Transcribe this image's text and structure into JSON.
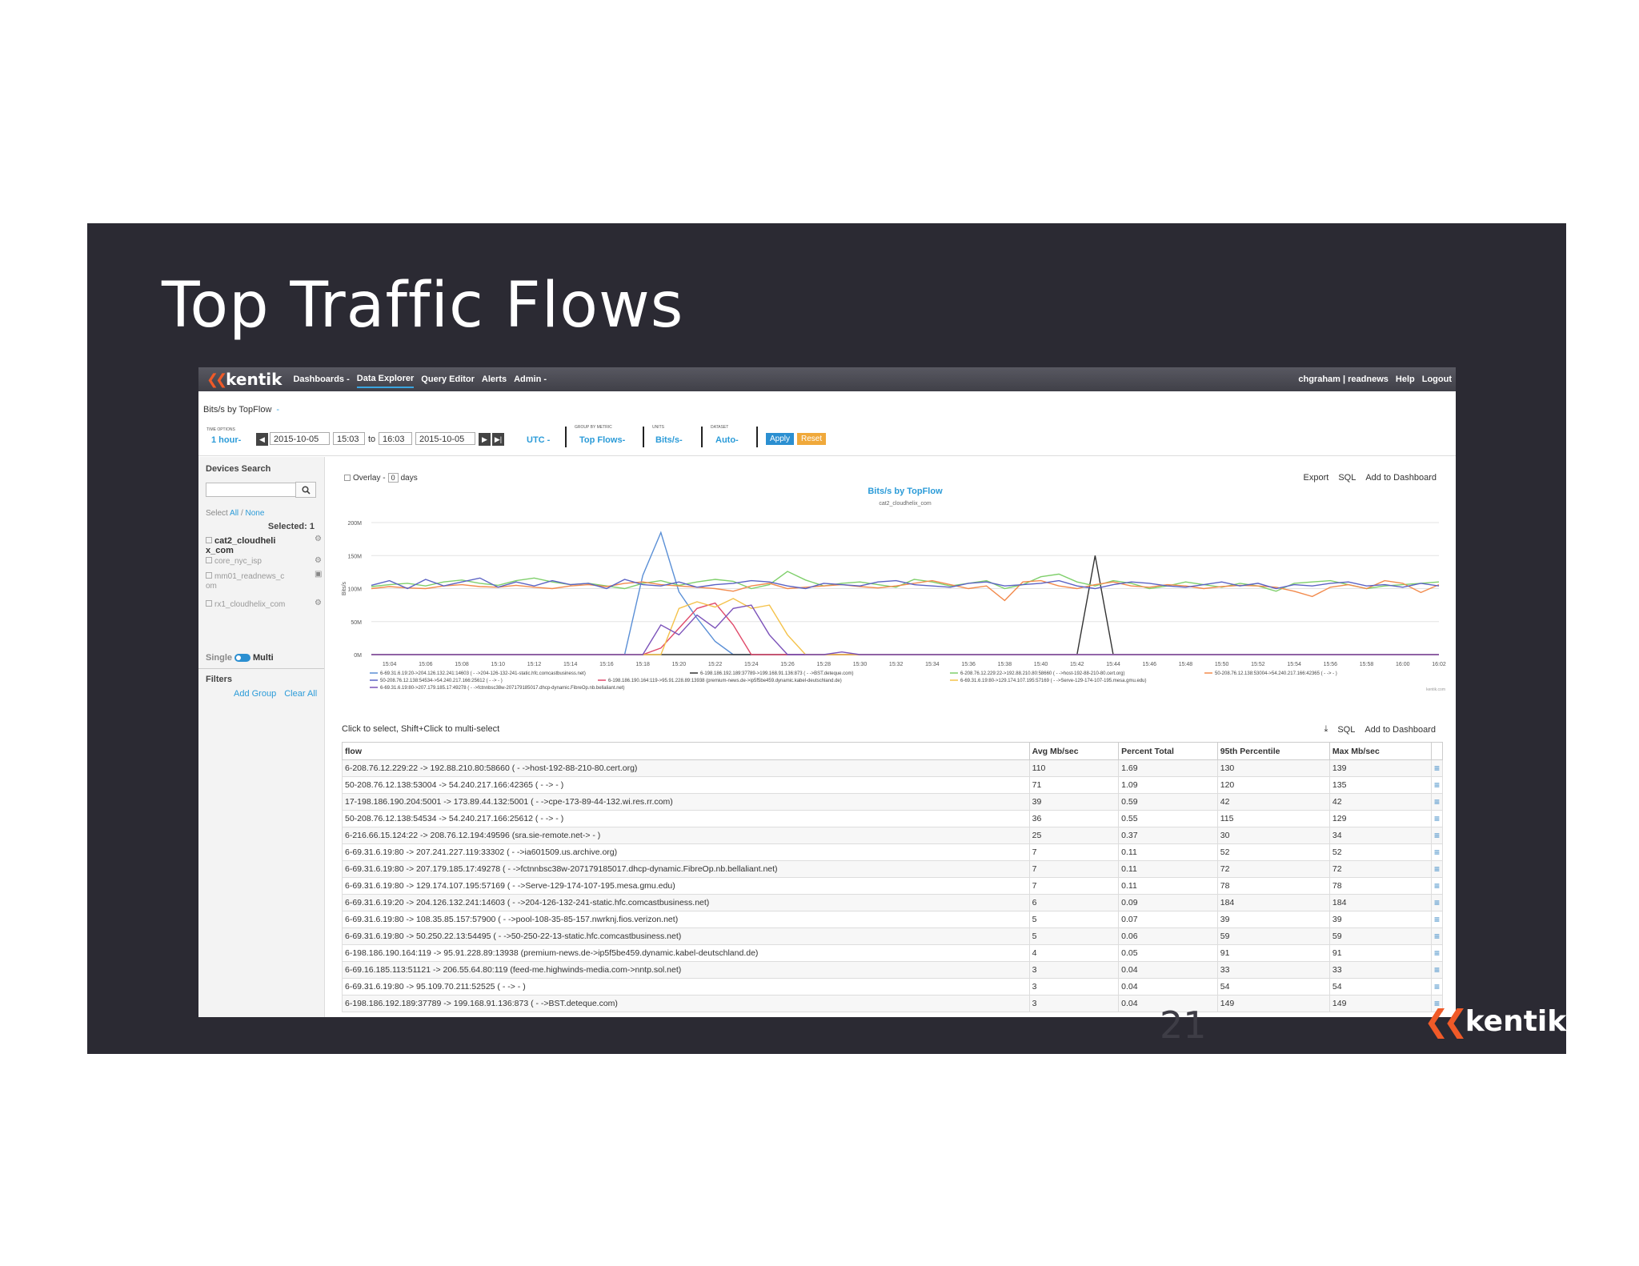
{
  "slide": {
    "title": "Top Traffic Flows",
    "number": "21",
    "logo": "kentik"
  },
  "topbar": {
    "brand": "kentik",
    "nav": [
      "Dashboards -",
      "Data Explorer",
      "Query Editor",
      "Alerts",
      "Admin -"
    ],
    "user": "chgraham | readnews",
    "help": "Help",
    "logout": "Logout"
  },
  "query": {
    "title": "Bits/s by TopFlow",
    "caret": "-",
    "time_options_label": "TIME OPTIONS",
    "range": "1 hour-",
    "start_date": "2015-10-05",
    "start_time": "15:03",
    "to": "to",
    "end_time": "16:03",
    "end_date": "2015-10-05",
    "timezone": "UTC -",
    "group_label": "GROUP BY METRIC",
    "group": "Top Flows-",
    "units_label": "UNITS",
    "units": "Bits/s-",
    "dataset_label": "DATASET",
    "dataset": "Auto-",
    "apply": "Apply",
    "reset": "Reset"
  },
  "sidebar": {
    "devices_heading": "Devices Search",
    "select_label": "Select",
    "select_all": "All",
    "select_slash": "/",
    "select_none": "None",
    "selected": "Selected: 1",
    "devices": [
      {
        "name": "cat2_cloudheli x_com",
        "checked": true
      },
      {
        "name": "core_nyc_isp",
        "checked": false
      },
      {
        "name": "mm01_readnews_c om",
        "checked": false
      },
      {
        "name": "rx1_cloudhelix_com",
        "checked": false
      }
    ],
    "single": "Single",
    "multi": "Multi",
    "filters_heading": "Filters",
    "add_group": "Add Group",
    "clear_all": "Clear All"
  },
  "chart_toolbar": {
    "overlay": "Overlay -",
    "overlay_value": "0",
    "days": "days",
    "export": "Export",
    "sql": "SQL",
    "add_to_dashboard": "Add to Dashboard"
  },
  "chart_data": {
    "type": "line",
    "title": "Bits/s by TopFlow",
    "subtitle": "cat2_cloudhelix_com",
    "ylabel": "Bits/s",
    "xlabel": "",
    "ylim": [
      0,
      200
    ],
    "y_ticks": [
      "0M",
      "50M",
      "100M",
      "150M",
      "200M"
    ],
    "x_ticks": [
      "15:04",
      "15:06",
      "15:08",
      "15:10",
      "15:12",
      "15:14",
      "15:16",
      "15:18",
      "15:20",
      "15:22",
      "15:24",
      "15:26",
      "15:28",
      "15:30",
      "15:32",
      "15:34",
      "15:36",
      "15:38",
      "15:40",
      "15:42",
      "15:44",
      "15:46",
      "15:48",
      "15:50",
      "15:52",
      "15:54",
      "15:56",
      "15:58",
      "16:00",
      "16:02"
    ],
    "x_start_min": 3,
    "x_end_min": 62,
    "grid": true,
    "legend_position": "bottom",
    "watermark": "kentik.com",
    "series": [
      {
        "name": "6-69.31.6.19:20->204.126.132.241:14603 ( - ->204-126-132-241-static.hfc.comcastbusiness.net)",
        "color": "#5a8fd6",
        "x": [
          3,
          4,
          5,
          6,
          7,
          8,
          9,
          10,
          11,
          12,
          13,
          14,
          15,
          16,
          17,
          18,
          19,
          20,
          21,
          22,
          23,
          62
        ],
        "y": [
          0,
          0,
          0,
          0,
          0,
          0,
          0,
          0,
          0,
          0,
          0,
          0,
          0,
          0,
          0,
          120,
          185,
          95,
          55,
          20,
          0,
          0
        ]
      },
      {
        "name": "6-198.186.192.189:37789->199.168.91.136:873 ( - ->BST.deteque.com)",
        "color": "#333333",
        "x": [
          3,
          40,
          41,
          42,
          43,
          44,
          62
        ],
        "y": [
          0,
          0,
          0,
          0,
          150,
          0,
          0
        ]
      },
      {
        "name": "6-208.76.12.229:22->192.88.210.80:58660 ( - ->host-192-88-210-80.cert.org)",
        "color": "#7fcf6b",
        "x": [
          3,
          4,
          5,
          6,
          7,
          8,
          9,
          10,
          11,
          12,
          13,
          14,
          15,
          16,
          17,
          18,
          19,
          20,
          21,
          22,
          23,
          24,
          25,
          26,
          27,
          28,
          29,
          30,
          31,
          32,
          33,
          34,
          35,
          36,
          37,
          38,
          39,
          40,
          41,
          42,
          43,
          44,
          45,
          46,
          47,
          48,
          49,
          50,
          51,
          52,
          53,
          54,
          55,
          56,
          57,
          58,
          59,
          60,
          61,
          62
        ],
        "y": [
          103,
          106,
          108,
          104,
          110,
          113,
          108,
          105,
          112,
          116,
          110,
          106,
          108,
          104,
          100,
          108,
          112,
          105,
          110,
          114,
          111,
          100,
          106,
          126,
          113,
          104,
          108,
          110,
          106,
          102,
          114,
          110,
          104,
          108,
          112,
          100,
          106,
          118,
          122,
          110,
          104,
          112,
          108,
          100,
          104,
          110,
          106,
          102,
          108,
          104,
          96,
          108,
          110,
          112,
          106,
          100,
          104,
          106,
          108,
          110
        ]
      },
      {
        "name": "50-208.76.12.138:53004->54.240.217.166:42365 ( - -> - )",
        "color": "#f28a4c",
        "x": [
          3,
          4,
          5,
          6,
          7,
          8,
          9,
          10,
          11,
          12,
          13,
          14,
          15,
          16,
          17,
          18,
          19,
          20,
          21,
          22,
          23,
          24,
          25,
          26,
          27,
          28,
          29,
          30,
          31,
          32,
          33,
          34,
          35,
          36,
          37,
          38,
          39,
          40,
          41,
          42,
          43,
          44,
          45,
          46,
          47,
          48,
          49,
          50,
          51,
          52,
          53,
          54,
          55,
          56,
          57,
          58,
          59,
          60,
          61,
          62
        ],
        "y": [
          100,
          103,
          101,
          100,
          104,
          106,
          103,
          102,
          105,
          102,
          100,
          104,
          106,
          103,
          108,
          110,
          106,
          104,
          102,
          100,
          96,
          104,
          108,
          100,
          102,
          104,
          106,
          103,
          101,
          104,
          108,
          112,
          106,
          100,
          104,
          82,
          110,
          112,
          104,
          100,
          106,
          110,
          104,
          102,
          106,
          104,
          100,
          103,
          105,
          104,
          102,
          96,
          88,
          102,
          106,
          100,
          112,
          108,
          94,
          106
        ]
      },
      {
        "name": "50-208.76.12.138:54534->54.240.217.166:25612 ( - -> - )",
        "color": "#5b62c4",
        "x": [
          3,
          4,
          5,
          6,
          7,
          8,
          9,
          10,
          11,
          12,
          13,
          14,
          15,
          16,
          17,
          18,
          19,
          20,
          21,
          22,
          23,
          24,
          25,
          26,
          27,
          28,
          29,
          30,
          31,
          32,
          33,
          34,
          35,
          36,
          37,
          38,
          39,
          40,
          41,
          42,
          43,
          44,
          45,
          46,
          47,
          48,
          49,
          50,
          51,
          52,
          53,
          54,
          55,
          56,
          57,
          58,
          59,
          60,
          61,
          62
        ],
        "y": [
          105,
          112,
          100,
          114,
          104,
          110,
          116,
          102,
          110,
          104,
          112,
          106,
          108,
          100,
          114,
          106,
          104,
          110,
          102,
          106,
          108,
          112,
          110,
          104,
          100,
          108,
          106,
          104,
          110,
          112,
          106,
          104,
          102,
          108,
          110,
          104,
          106,
          108,
          112,
          104,
          100,
          106,
          110,
          108,
          104,
          102,
          106,
          110,
          104,
          108,
          100,
          106,
          104,
          108,
          110,
          104,
          106,
          102,
          108,
          104
        ]
      },
      {
        "name": "6-198.186.190.164:119->95.91.228.89:13938 (premium-news.de->ip5f5be459.dynamic.kabel-deutschland.de)",
        "color": "#e04a6a",
        "x": [
          3,
          17,
          18,
          19,
          20,
          21,
          22,
          23,
          24,
          25,
          26,
          62
        ],
        "y": [
          0,
          0,
          0,
          10,
          40,
          70,
          78,
          45,
          0,
          0,
          0,
          0
        ]
      },
      {
        "name": "6-69.31.6.19:80->129.174.107.195:57169 ( - ->Serve-129-174-107-195.mesa.gmu.edu)",
        "color": "#f4c24b",
        "x": [
          3,
          18,
          19,
          20,
          21,
          22,
          23,
          24,
          25,
          26,
          27,
          62
        ],
        "y": [
          0,
          0,
          0,
          70,
          80,
          72,
          85,
          70,
          75,
          30,
          0,
          0
        ]
      },
      {
        "name": "6-69.31.6.19:80->207.179.185.17:49278 ( - ->fctnnbsc38w-207179185017.dhcp-dynamic.FibreOp.nb.bellaliant.net)",
        "color": "#7b52b9",
        "x": [
          3,
          17,
          18,
          19,
          20,
          21,
          22,
          23,
          24,
          25,
          26,
          27,
          28,
          29,
          30,
          31,
          62
        ],
        "y": [
          0,
          0,
          0,
          45,
          30,
          60,
          40,
          70,
          75,
          30,
          0,
          0,
          0,
          4,
          0,
          0,
          0
        ]
      }
    ]
  },
  "table": {
    "hint": "Click to select, Shift+Click to multi-select",
    "sql": "SQL",
    "add_to_dashboard": "Add to Dashboard",
    "columns": [
      "flow",
      "Avg Mb/sec",
      "Percent Total",
      "95th Percentile",
      "Max Mb/sec"
    ],
    "rows": [
      [
        "6-208.76.12.229:22 -> 192.88.210.80:58660 ( - ->host-192-88-210-80.cert.org)",
        "110",
        "1.69",
        "130",
        "139"
      ],
      [
        "50-208.76.12.138:53004 -> 54.240.217.166:42365 ( - -> - )",
        "71",
        "1.09",
        "120",
        "135"
      ],
      [
        "17-198.186.190.204:5001 -> 173.89.44.132:5001 ( - ->cpe-173-89-44-132.wi.res.rr.com)",
        "39",
        "0.59",
        "42",
        "42"
      ],
      [
        "50-208.76.12.138:54534 -> 54.240.217.166:25612 ( - -> - )",
        "36",
        "0.55",
        "115",
        "129"
      ],
      [
        "6-216.66.15.124:22 -> 208.76.12.194:49596 (sra.sie-remote.net-> - )",
        "25",
        "0.37",
        "30",
        "34"
      ],
      [
        "6-69.31.6.19:80 -> 207.241.227.119:33302 ( - ->ia601509.us.archive.org)",
        "7",
        "0.11",
        "52",
        "52"
      ],
      [
        "6-69.31.6.19:80 -> 207.179.185.17:49278 ( - ->fctnnbsc38w-207179185017.dhcp-dynamic.FibreOp.nb.bellaliant.net)",
        "7",
        "0.11",
        "72",
        "72"
      ],
      [
        "6-69.31.6.19:80 -> 129.174.107.195:57169 ( - ->Serve-129-174-107-195.mesa.gmu.edu)",
        "7",
        "0.11",
        "78",
        "78"
      ],
      [
        "6-69.31.6.19:20 -> 204.126.132.241:14603 ( - ->204-126-132-241-static.hfc.comcastbusiness.net)",
        "6",
        "0.09",
        "184",
        "184"
      ],
      [
        "6-69.31.6.19:80 -> 108.35.85.157:57900 ( - ->pool-108-35-85-157.nwrknj.fios.verizon.net)",
        "5",
        "0.07",
        "39",
        "39"
      ],
      [
        "6-69.31.6.19:80 -> 50.250.22.13:54495 ( - ->50-250-22-13-static.hfc.comcastbusiness.net)",
        "5",
        "0.06",
        "59",
        "59"
      ],
      [
        "6-198.186.190.164:119 -> 95.91.228.89:13938 (premium-news.de->ip5f5be459.dynamic.kabel-deutschland.de)",
        "4",
        "0.05",
        "91",
        "91"
      ],
      [
        "6-69.16.185.113:51121 -> 206.55.64.80:119 (feed-me.highwinds-media.com->nntp.sol.net)",
        "3",
        "0.04",
        "33",
        "33"
      ],
      [
        "6-69.31.6.19:80 -> 95.109.70.211:52525 ( - -> - )",
        "3",
        "0.04",
        "54",
        "54"
      ],
      [
        "6-198.186.192.189:37789 -> 199.168.91.136:873 ( - ->BST.deteque.com)",
        "3",
        "0.04",
        "149",
        "149"
      ]
    ]
  }
}
